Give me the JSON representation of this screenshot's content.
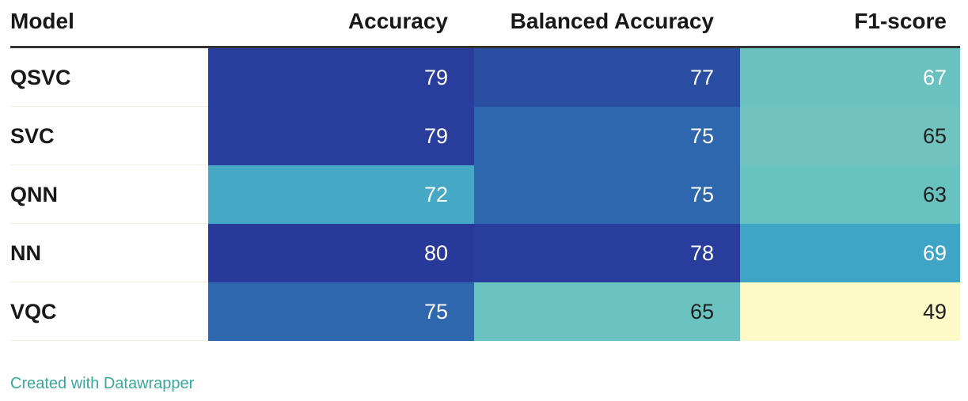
{
  "chart_data": {
    "type": "table",
    "columns": [
      "Model",
      "Accuracy",
      "Balanced Accuracy",
      "F1-score"
    ],
    "rows": [
      {
        "model": "QSVC",
        "values": [
          79,
          77,
          67
        ]
      },
      {
        "model": "SVC",
        "values": [
          79,
          75,
          65
        ]
      },
      {
        "model": "QNN",
        "values": [
          72,
          75,
          63
        ]
      },
      {
        "model": "NN",
        "values": [
          80,
          78,
          69
        ]
      },
      {
        "model": "VQC",
        "values": [
          75,
          65,
          49
        ]
      }
    ],
    "cell_colors": [
      [
        "#283d9c",
        "#2a4ea2",
        "#6ac2c0"
      ],
      [
        "#283d9c",
        "#2e67ae",
        "#70c3be"
      ],
      [
        "#45a8c5",
        "#2e67ae",
        "#67c2c0"
      ],
      [
        "#283a99",
        "#283d9c",
        "#3ea5c6"
      ],
      [
        "#2e67ae",
        "#6ac3c1",
        "#fefac7"
      ]
    ],
    "cell_text_colors": [
      [
        "#ffffff",
        "#ffffff",
        "#ffffff"
      ],
      [
        "#ffffff",
        "#ffffff",
        "#1f1f1f"
      ],
      [
        "#ffffff",
        "#ffffff",
        "#1f1f1f"
      ],
      [
        "#ffffff",
        "#ffffff",
        "#ffffff"
      ],
      [
        "#ffffff",
        "#1f1f1f",
        "#1f1f1f"
      ]
    ]
  },
  "footer": "Created with Datawrapper"
}
